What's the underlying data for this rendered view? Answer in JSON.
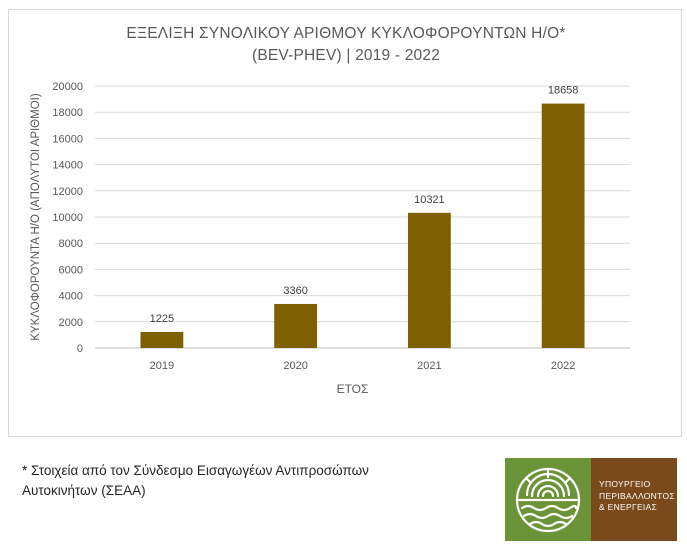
{
  "chart_data": {
    "type": "bar",
    "title": "ΕΞΕΛΙΞΗ ΣΥΝΟΛΙΚΟΥ ΑΡΙΘΜΟΥ ΚΥΚΛΟΦΟΡΟΥΝΤΩΝ Η/Ο*",
    "subtitle": "(BEV-PHEV) | 2019 - 2022",
    "xlabel": "ΕΤΟΣ",
    "ylabel": "ΚΥΚΛΟΦΟΡΟΥΝΤΑ Η/Ο (ΑΠΟΛΥΤΟΙ ΑΡΙΘΜΟΙ)",
    "categories": [
      "2019",
      "2020",
      "2021",
      "2022"
    ],
    "values": [
      1225,
      3360,
      10321,
      18658
    ],
    "ylim": [
      0,
      20000
    ],
    "yticks": [
      0,
      2000,
      4000,
      6000,
      8000,
      10000,
      12000,
      14000,
      16000,
      18000,
      20000
    ],
    "grid": true,
    "data_labels": true,
    "bar_color": "#7f6000"
  },
  "footnote": {
    "line1": "* Στοιχεία από τον Σύνδεσμο Εισαγωγέων Αντιπροσώπων",
    "line2": "Αυτοκινήτων (ΣΕΑΑ)"
  },
  "logo": {
    "line1": "ΥΠΟΥΡΓΕΙΟ",
    "line2": "ΠΕΡΙΒΑΛΛΟΝΤΟΣ",
    "line3": "& ΕΝΕΡΓΕΙΑΣ",
    "emblem_icon": "sun-sea-emblem-icon",
    "green": "#6b9337",
    "brown": "#7a4a1c"
  }
}
